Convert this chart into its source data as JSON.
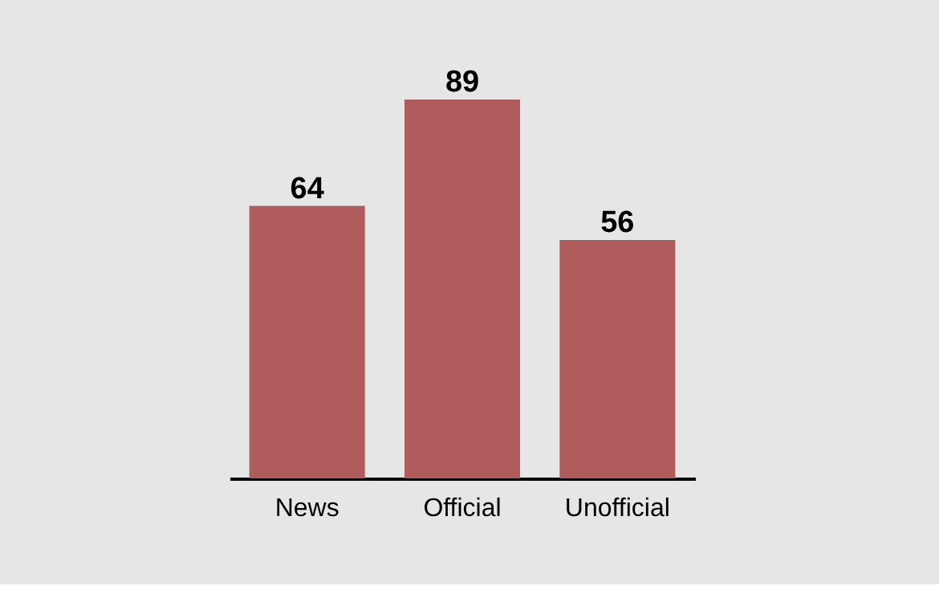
{
  "chart_data": {
    "type": "bar",
    "categories": [
      "News",
      "Official",
      "Unofficial"
    ],
    "values": [
      64,
      89,
      56
    ],
    "color": "#b05c5c",
    "data_labels": true
  }
}
